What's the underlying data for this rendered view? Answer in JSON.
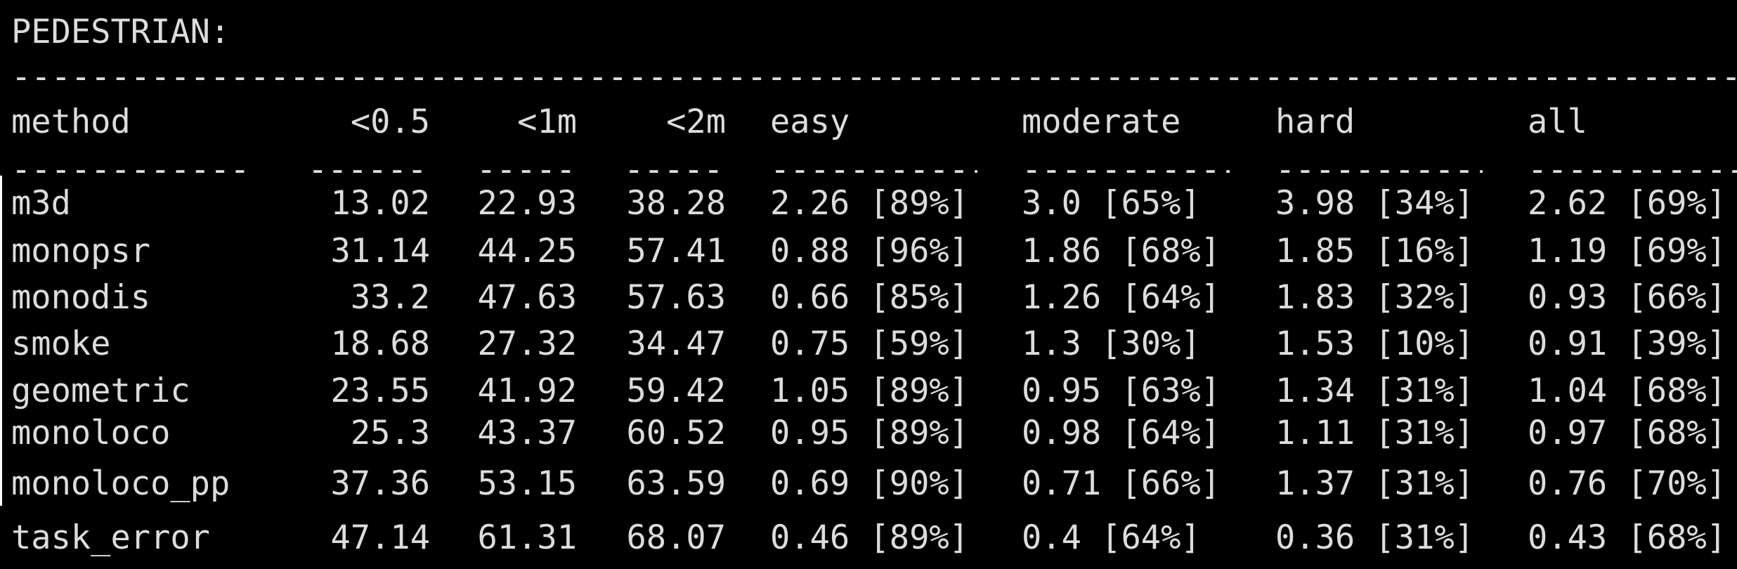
{
  "title": "PEDESTRIAN:",
  "separator": "----------------------------------------------------------------------------------------------",
  "columns": [
    "method",
    "<0.5",
    "<1m",
    "<2m",
    "easy",
    "moderate",
    "hard",
    "all"
  ],
  "rows": [
    {
      "method": "m3d",
      "lt05": "13.02",
      "lt1m": "22.93",
      "lt2m": "38.28",
      "easy": "2.26 [89%]",
      "moderate": "3.0 [65%]",
      "hard": "3.98 [34%]",
      "all": "2.62 [69%]"
    },
    {
      "method": "monopsr",
      "lt05": "31.14",
      "lt1m": "44.25",
      "lt2m": "57.41",
      "easy": "0.88 [96%]",
      "moderate": "1.86 [68%]",
      "hard": "1.85 [16%]",
      "all": "1.19 [69%]"
    },
    {
      "method": "monodis",
      "lt05": "33.2",
      "lt1m": "47.63",
      "lt2m": "57.63",
      "easy": "0.66 [85%]",
      "moderate": "1.26 [64%]",
      "hard": "1.83 [32%]",
      "all": "0.93 [66%]"
    },
    {
      "method": "smoke",
      "lt05": "18.68",
      "lt1m": "27.32",
      "lt2m": "34.47",
      "easy": "0.75 [59%]",
      "moderate": "1.3 [30%]",
      "hard": "1.53 [10%]",
      "all": "0.91 [39%]"
    },
    {
      "method": "geometric",
      "lt05": "23.55",
      "lt1m": "41.92",
      "lt2m": "59.42",
      "easy": "1.05 [89%]",
      "moderate": "0.95 [63%]",
      "hard": "1.34 [31%]",
      "all": "1.04 [68%]"
    },
    {
      "method": "monoloco",
      "lt05": "25.3",
      "lt1m": "43.37",
      "lt2m": "60.52",
      "easy": "0.95 [89%]",
      "moderate": "0.98 [64%]",
      "hard": "1.11 [31%]",
      "all": "0.97 [68%]"
    },
    {
      "method": "monoloco_pp",
      "lt05": "37.36",
      "lt1m": "53.15",
      "lt2m": "63.59",
      "easy": "0.69 [90%]",
      "moderate": "0.71 [66%]",
      "hard": "1.37 [31%]",
      "all": "0.76 [70%]"
    },
    {
      "method": "task_error",
      "lt05": "47.14",
      "lt1m": "61.31",
      "lt2m": "68.07",
      "easy": "0.46 [89%]",
      "moderate": "0.4 [64%]",
      "hard": "0.36 [31%]",
      "all": "0.43 [68%]"
    }
  ],
  "colors": {
    "background": "#000000",
    "text": "#dcdcdc"
  }
}
